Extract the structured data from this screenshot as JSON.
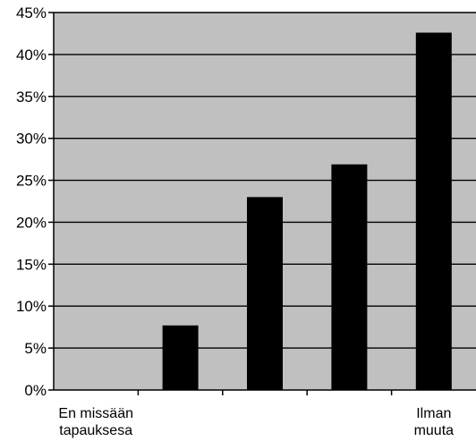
{
  "chart_data": {
    "type": "bar",
    "categories": [
      [
        "En missään",
        "tapauksesa"
      ],
      [
        "",
        ""
      ],
      [
        "",
        ""
      ],
      [
        "",
        ""
      ],
      [
        "Ilman",
        "muuta"
      ]
    ],
    "values": [
      0,
      7.7,
      23,
      26.9,
      42.6
    ],
    "ylim": [
      0,
      45
    ],
    "yticks": [
      0,
      5,
      10,
      15,
      20,
      25,
      30,
      35,
      40,
      45
    ],
    "ytick_labels": [
      "0%",
      "5%",
      "10%",
      "15%",
      "20%",
      "25%",
      "30%",
      "35%",
      "40%",
      "45%"
    ],
    "grid": true,
    "colors": {
      "plot_background": "#c0c0c0",
      "bar": "#000000",
      "gridline": "#000000",
      "axis": "#000000"
    }
  }
}
